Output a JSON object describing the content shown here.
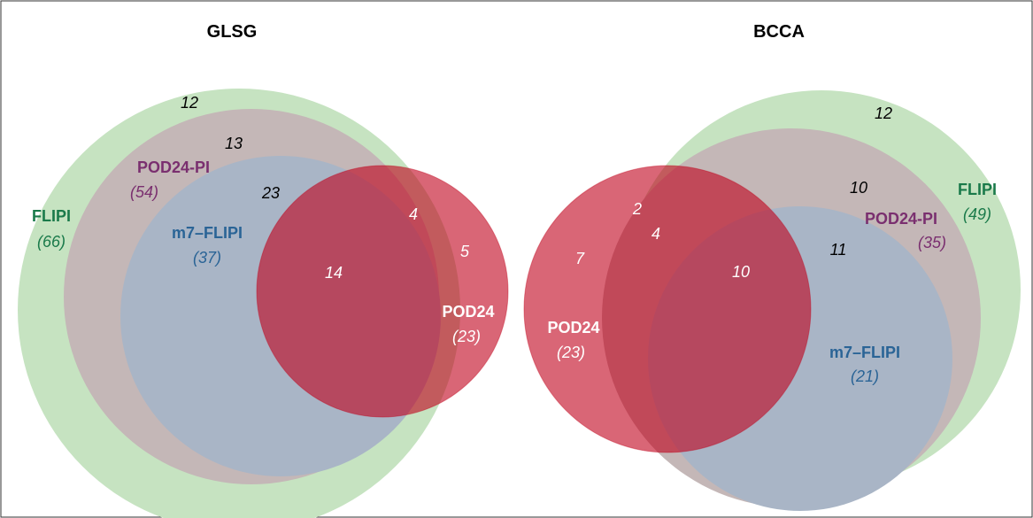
{
  "panels": {
    "glsg": {
      "title": "GLSG",
      "sets": {
        "flipi": {
          "name": "FLIPI",
          "count": "(66)"
        },
        "pod24pi": {
          "name": "POD24-PI",
          "count": "(54)"
        },
        "m7flipi": {
          "name": "m7–FLIPI",
          "count": "(37)"
        },
        "pod24": {
          "name": "POD24",
          "count": "(23)"
        }
      },
      "regions": {
        "flipi_only": "12",
        "flipi_pod24pi": "13",
        "all_three_no_pod24": "23",
        "pod24_flipi_pod24pi": "4",
        "pod24_only": "5",
        "all_four": "14"
      }
    },
    "bcca": {
      "title": "BCCA",
      "sets": {
        "flipi": {
          "name": "FLIPI",
          "count": "(49)"
        },
        "pod24pi": {
          "name": "POD24-PI",
          "count": "(35)"
        },
        "m7flipi": {
          "name": "m7–FLIPI",
          "count": "(21)"
        },
        "pod24": {
          "name": "POD24",
          "count": "(23)"
        }
      },
      "regions": {
        "flipi_only": "12",
        "flipi_pod24pi": "10",
        "all_three_no_pod24": "11",
        "pod24_flipi": "2",
        "pod24_flipi_pod24pi": "4",
        "pod24_only": "7",
        "all_four": "10"
      }
    }
  },
  "colors": {
    "flipi": "#c6e3c1",
    "pod24pi": "#c4b7b7",
    "m7flipi": "#a9b5c6",
    "pod24": "#c0001a",
    "flipi_label": "#1a7a4a",
    "pod24pi_label": "#7a2f6f",
    "m7flipi_label": "#2a6496"
  }
}
